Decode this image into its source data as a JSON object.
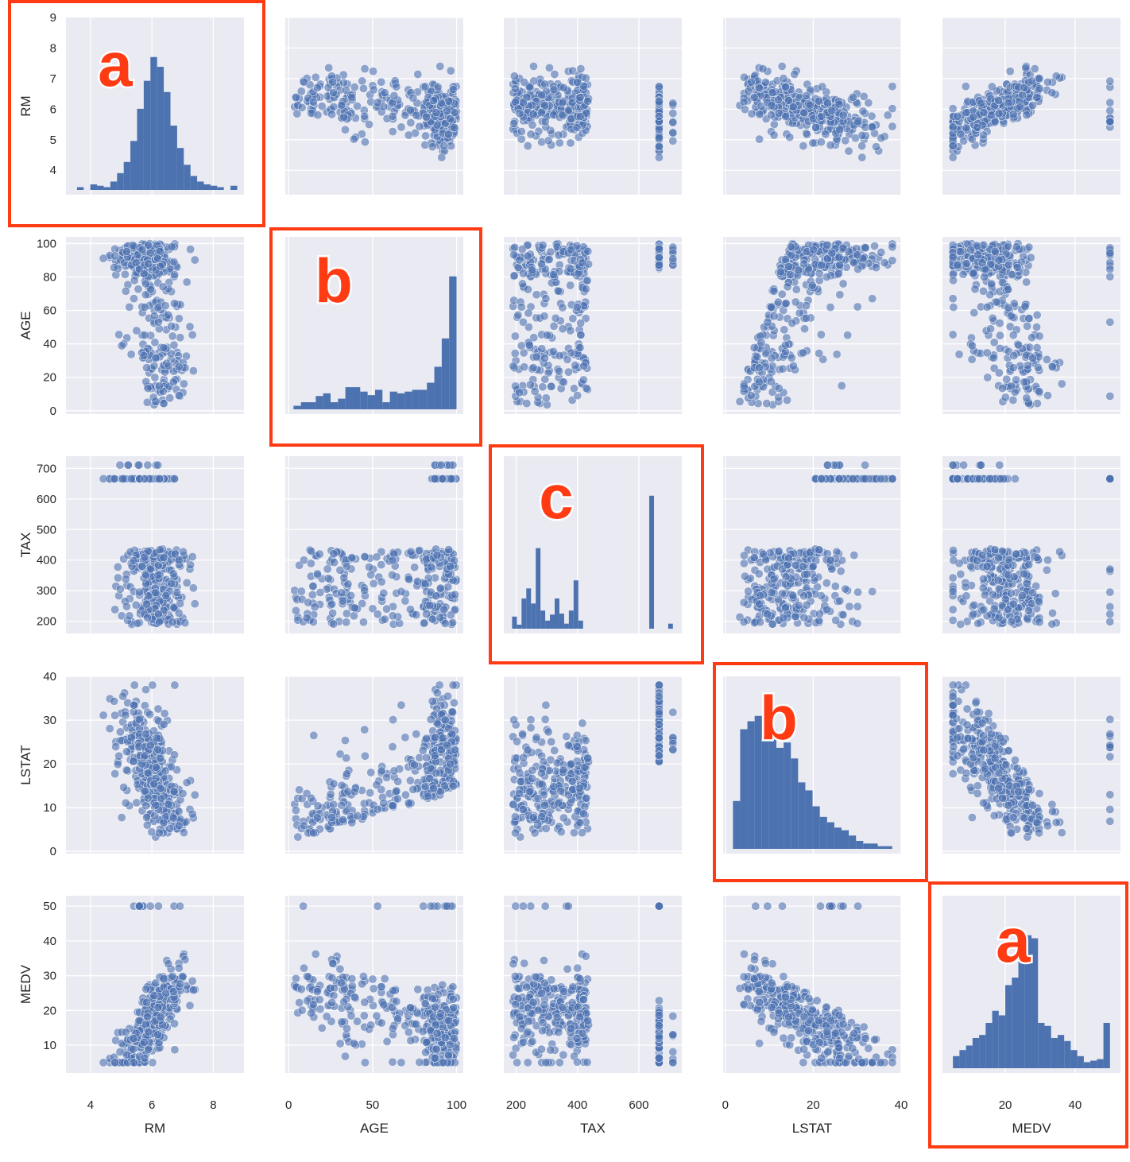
{
  "chart_data": {
    "type": "scatter",
    "variables": [
      "RM",
      "AGE",
      "TAX",
      "LSTAT",
      "MEDV"
    ],
    "ticks": {
      "RM": [
        4,
        5,
        6,
        7,
        8,
        9
      ],
      "AGE": [
        0,
        20,
        40,
        50,
        60,
        80,
        100
      ],
      "TAX": [
        200,
        300,
        400,
        500,
        600,
        700
      ],
      "LSTAT": [
        0,
        10,
        20,
        30,
        40
      ],
      "MEDV": [
        10,
        20,
        30,
        40,
        50
      ]
    },
    "y_ticks": {
      "RM": [
        4,
        5,
        6,
        7,
        8,
        9
      ],
      "AGE": [
        0,
        20,
        40,
        60,
        80,
        100
      ],
      "TAX": [
        200,
        300,
        400,
        500,
        600,
        700
      ],
      "LSTAT": [
        0,
        10,
        20,
        30,
        40
      ],
      "MEDV": [
        10,
        20,
        30,
        40,
        50
      ]
    },
    "x_ticks": {
      "RM": [
        4,
        6,
        8
      ],
      "AGE": [
        0,
        50,
        100
      ],
      "TAX": [
        200,
        400,
        600
      ],
      "LSTAT": [
        0,
        20,
        40
      ],
      "MEDV": [
        20,
        40
      ]
    },
    "ranges": {
      "RM": [
        3.2,
        9.0
      ],
      "AGE": [
        -2,
        104
      ],
      "TAX": [
        160,
        740
      ],
      "LSTAT": [
        -0.5,
        40
      ],
      "MEDV": [
        2,
        53
      ]
    },
    "colors": {
      "points": "#4c72b0",
      "panel_bg": "#eaeaf2",
      "grid": "#ffffff",
      "badge": "#ff3b14"
    },
    "grid": true,
    "histograms": {
      "RM": {
        "start": 3.56,
        "end": 8.78,
        "counts": [
          2,
          0,
          4,
          3,
          2,
          6,
          12,
          20,
          35,
          58,
          78,
          95,
          88,
          70,
          46,
          30,
          18,
          10,
          6,
          4,
          3,
          2,
          0,
          3
        ]
      },
      "AGE": {
        "start": 2.9,
        "end": 100,
        "counts": [
          4,
          8,
          8,
          15,
          18,
          8,
          12,
          25,
          25,
          20,
          16,
          22,
          8,
          20,
          18,
          20,
          22,
          22,
          30,
          48,
          80,
          150
        ]
      },
      "TAX": {
        "start": 187,
        "end": 711,
        "counts": [
          12,
          4,
          30,
          40,
          25,
          80,
          18,
          8,
          14,
          30,
          15,
          5,
          18,
          48,
          8,
          0,
          0,
          0,
          0,
          0,
          0,
          0,
          0,
          0,
          0,
          0,
          0,
          0,
          0,
          132,
          0,
          0,
          0,
          5
        ]
      },
      "LSTAT": {
        "start": 1.73,
        "end": 37.97,
        "counts": [
          18,
          45,
          48,
          50,
          42,
          45,
          38,
          40,
          34,
          25,
          22,
          16,
          12,
          10,
          8,
          7,
          5,
          3,
          2,
          2,
          1,
          1
        ]
      },
      "MEDV": {
        "start": 5,
        "end": 50,
        "counts": [
          8,
          12,
          15,
          20,
          22,
          30,
          38,
          35,
          55,
          60,
          88,
          88,
          86,
          30,
          28,
          20,
          22,
          18,
          12,
          8,
          4,
          5,
          6,
          30
        ]
      }
    },
    "badges": [
      {
        "panel": "RM",
        "letter": "a"
      },
      {
        "panel": "AGE",
        "letter": "b"
      },
      {
        "panel": "TAX",
        "letter": "c"
      },
      {
        "panel": "LSTAT",
        "letter": "b"
      },
      {
        "panel": "MEDV",
        "letter": "a"
      }
    ]
  }
}
